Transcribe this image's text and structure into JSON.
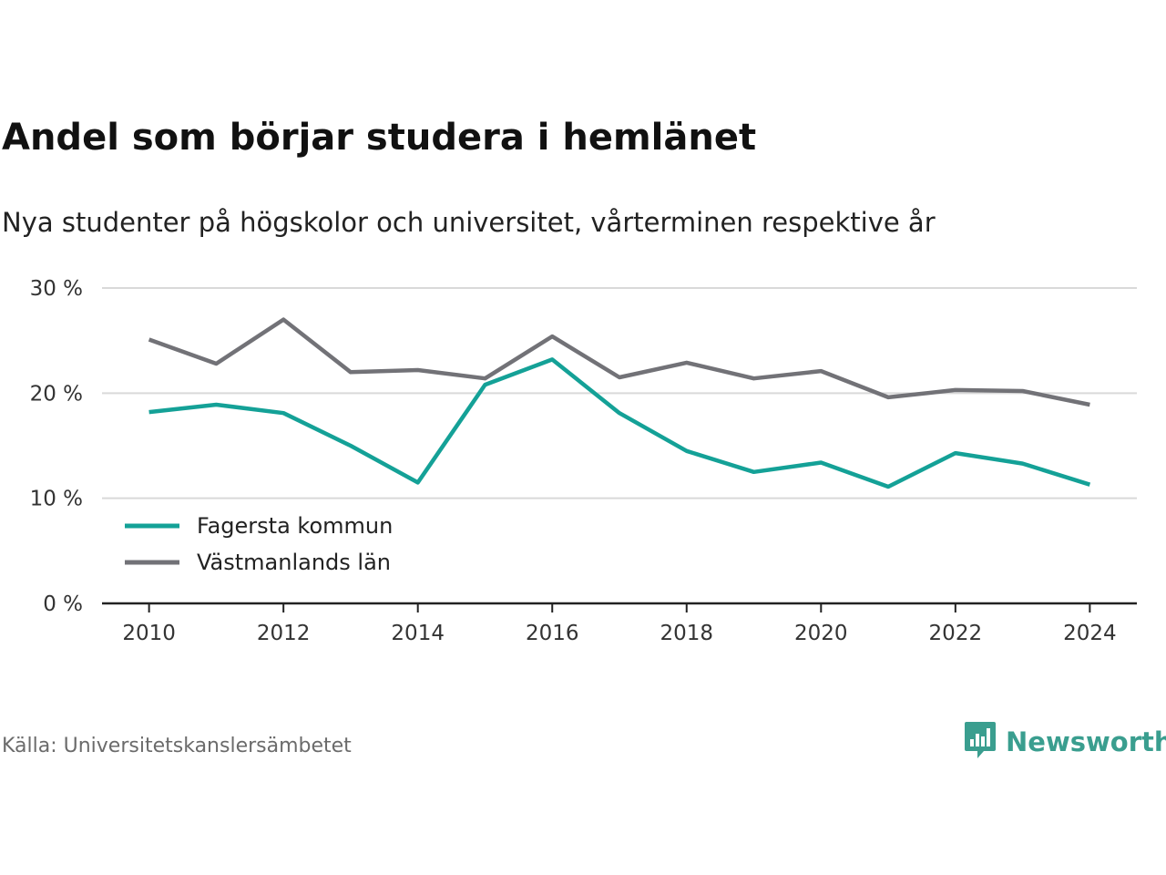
{
  "header": {
    "title": "Andel som börjar studera i hemlänet",
    "subtitle": "Nya studenter på högskolor och universitet, vårterminen respektive år"
  },
  "footer": {
    "source": "Källa: Universitetskanslersämbetet",
    "brand": "Newsworthy",
    "brand_icon": "bar-chart-speech-bubble-icon",
    "brand_color": "#3a9e8f"
  },
  "chart_data": {
    "type": "line",
    "x": [
      2010,
      2011,
      2012,
      2013,
      2014,
      2015,
      2016,
      2017,
      2018,
      2019,
      2020,
      2021,
      2022,
      2023,
      2024
    ],
    "x_ticks": [
      2010,
      2012,
      2014,
      2016,
      2018,
      2020,
      2022,
      2024
    ],
    "x_tick_labels": [
      "2010",
      "2012",
      "2014",
      "2016",
      "2018",
      "2020",
      "2022",
      "2024"
    ],
    "y_ticks": [
      0,
      10,
      20,
      30
    ],
    "y_tick_labels": [
      "0 %",
      "10 %",
      "20 %",
      "30 %"
    ],
    "ylim": [
      0,
      30
    ],
    "xlim": [
      2009.3,
      2024.7
    ],
    "grid": true,
    "legend_position": "bottom-left",
    "series": [
      {
        "name": "Fagersta kommun",
        "color": "#14a197",
        "values": [
          18.2,
          18.9,
          18.1,
          15.0,
          11.5,
          20.8,
          23.2,
          18.1,
          14.5,
          12.5,
          13.4,
          11.1,
          14.3,
          13.3,
          11.3
        ]
      },
      {
        "name": "Västmanlands län",
        "color": "#727277",
        "values": [
          25.1,
          22.8,
          27.0,
          22.0,
          22.2,
          21.4,
          25.4,
          21.5,
          22.9,
          21.4,
          22.1,
          19.6,
          20.3,
          20.2,
          18.9
        ]
      }
    ]
  }
}
